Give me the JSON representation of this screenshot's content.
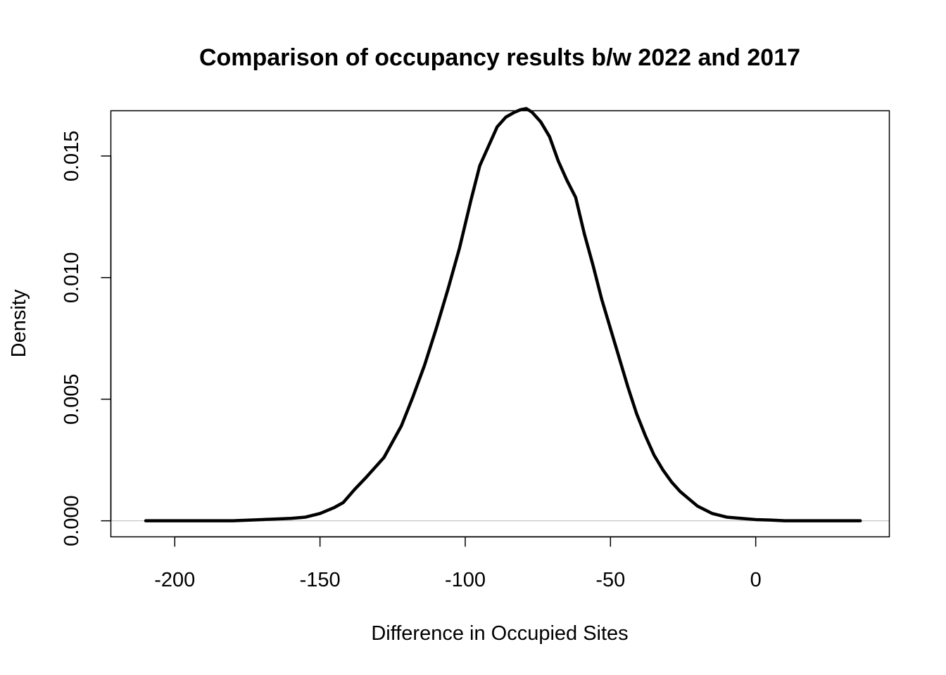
{
  "chart_data": {
    "type": "line",
    "title": "Comparison of occupancy results b/w 2022 and 2017",
    "xlabel": "Difference in Occupied Sites",
    "ylabel": "Density",
    "xlim": [
      -222,
      46
    ],
    "ylim": [
      -0.00066,
      0.01686
    ],
    "x_ticks": [
      -200,
      -150,
      -100,
      -50,
      0
    ],
    "x_tick_labels": [
      "-200",
      "-150",
      "-100",
      "-50",
      "0"
    ],
    "y_ticks": [
      0.0,
      0.005,
      0.01,
      0.015
    ],
    "y_tick_labels": [
      "0.000",
      "0.005",
      "0.010",
      "0.015"
    ],
    "reference_line": {
      "y": 0,
      "color": "#bebebe"
    },
    "grid": false,
    "legend": "none",
    "line_color": "#000000",
    "series": [
      {
        "name": "Density",
        "x": [
          -210,
          -200,
          -190,
          -180,
          -170,
          -160,
          -155,
          -150,
          -145,
          -142,
          -138,
          -134,
          -128,
          -122,
          -118,
          -114,
          -110,
          -106,
          -102,
          -98,
          -95,
          -92,
          -89,
          -86,
          -83,
          -81,
          -79,
          -77,
          -74,
          -71,
          -68,
          -65,
          -62,
          -59,
          -56,
          -53,
          -50,
          -47,
          -44,
          -41,
          -38,
          -35,
          -32,
          -29,
          -26,
          -23,
          -20,
          -15,
          -10,
          -5,
          0,
          5,
          10,
          20,
          30,
          36
        ],
        "values": [
          0.0,
          0.0,
          0.0,
          0.0,
          5e-05,
          0.0001,
          0.00015,
          0.0003,
          0.00055,
          0.00075,
          0.0013,
          0.0018,
          0.0026,
          0.0039,
          0.0051,
          0.0064,
          0.0079,
          0.0095,
          0.0112,
          0.0132,
          0.0146,
          0.0154,
          0.0162,
          0.0166,
          0.0168,
          0.0169,
          0.01695,
          0.0168,
          0.0164,
          0.0158,
          0.0148,
          0.014,
          0.0133,
          0.0118,
          0.0105,
          0.0091,
          0.0079,
          0.0067,
          0.0055,
          0.0044,
          0.0035,
          0.0027,
          0.0021,
          0.0016,
          0.0012,
          0.0009,
          0.0006,
          0.0003,
          0.00015,
          0.0001,
          5e-05,
          3e-05,
          0.0,
          0.0,
          0.0,
          0.0
        ]
      }
    ]
  }
}
